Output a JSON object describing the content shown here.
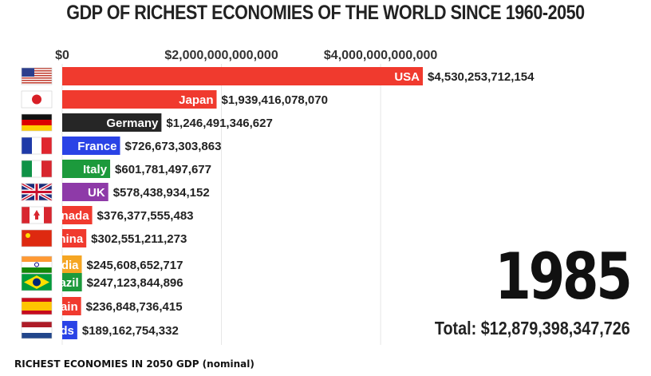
{
  "title": "GDP OF RICHEST ECONOMIES OF THE WORLD SINCE 1960-2050",
  "year": "1985",
  "total_text": "Total: $12,879,398,347,726",
  "caption": "RICHEST ECONOMIES IN 2050 GDP (nominal)",
  "chart_data": {
    "type": "bar",
    "orientation": "horizontal",
    "title": "GDP OF RICHEST ECONOMIES OF THE WORLD SINCE 1960-2050",
    "x_ticks": [
      {
        "value": 0,
        "label": "$0"
      },
      {
        "value": 2000000000000,
        "label": "$2,000,000,000,000"
      },
      {
        "value": 4000000000000,
        "label": "$4,000,000,000,000"
      }
    ],
    "xlim": [
      0,
      4600000000000
    ],
    "grid": true,
    "categories": [
      "USA",
      "Japan",
      "Germany",
      "France",
      "Italy",
      "UK",
      "Canada",
      "China",
      "India",
      "Brazil",
      "Spain",
      "Netherlands"
    ],
    "bar_labels": [
      "USA",
      "Japan",
      "Germany",
      "France",
      "Italy",
      "UK",
      "nada",
      "hina",
      "dia",
      "azil",
      "ain",
      "ds"
    ],
    "values": [
      4530253712154,
      1939416078070,
      1246491346627,
      726673303863,
      601781497677,
      578438934152,
      376377555483,
      302551211273,
      245608652717,
      247123844896,
      236848736415,
      189162754332
    ],
    "value_labels": [
      "$4,530,253,712,154",
      "$1,939,416,078,070",
      "$1,246,491,346,627",
      "$726,673,303,863",
      "$601,781,497,677",
      "$578,438,934,152",
      "$376,377,555,483",
      "$302,551,211,273",
      "$245,608,652,717",
      "$247,123,844,896",
      "$236,848,736,415",
      "$189,162,754,332"
    ],
    "colors": [
      "#f03a2e",
      "#f03a2e",
      "#262626",
      "#2a43e6",
      "#1c9a3c",
      "#8e3aa8",
      "#f03a2e",
      "#f03a2e",
      "#f5a623",
      "#1c9a3c",
      "#f03a2e",
      "#2a43e6"
    ],
    "flags": [
      "us-flag-icon",
      "japan-flag-icon",
      "germany-flag-icon",
      "france-flag-icon",
      "italy-flag-icon",
      "uk-flag-icon",
      "canada-flag-icon",
      "china-flag-icon",
      "india-flag-icon",
      "brazil-flag-icon",
      "spain-flag-icon",
      "netherlands-flag-icon"
    ]
  }
}
